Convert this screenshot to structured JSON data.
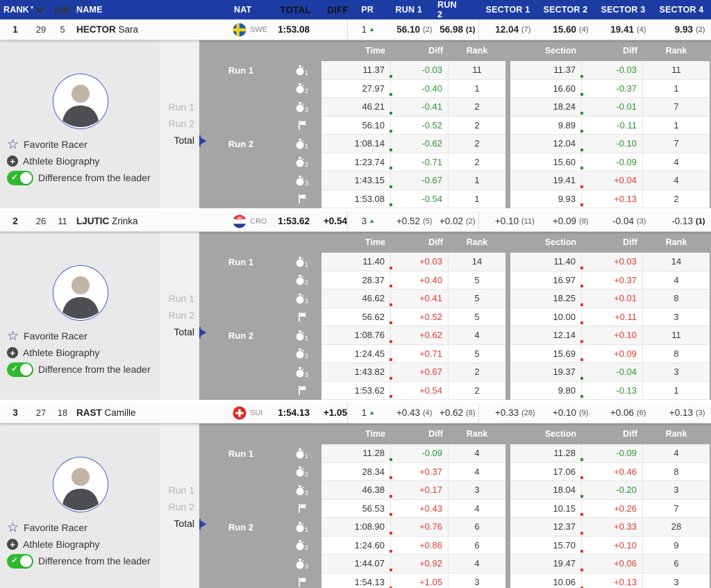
{
  "header": {
    "rank": "RANK",
    "no": "N°",
    "bib": "BIB",
    "name": "NAME",
    "nat": "NAT",
    "total": "TOTAL",
    "diff": "DIFF",
    "pr": "PR",
    "run1": "RUN 1",
    "run2": "RUN 2",
    "sector1": "SECTOR 1",
    "sector2": "SECTOR 2",
    "sector3": "SECTOR 3",
    "sector4": "SECTOR 4"
  },
  "icons": {
    "sort": "▼",
    "pr_up": "▲",
    "star": "☆",
    "plus": "+",
    "check": "✓"
  },
  "detail_header": {
    "time": "Time",
    "diff": "Diff",
    "rank": "Rank",
    "section": "Section"
  },
  "selector": {
    "run1": "Run 1",
    "run2": "Run 2",
    "total": "Total"
  },
  "side": {
    "favorite": "Favorite Racer",
    "biography": "Athlete Biography",
    "difference": "Difference from the leader"
  },
  "colors": {
    "header_bg": "#1C3CA4",
    "panel_gray": "#A5A5A5",
    "faster_green": "#2B9431",
    "slower_red": "#E03A2F",
    "toggle_on_green": "#2FBA2F",
    "accent_blue": "#2843A8"
  },
  "racers": [
    {
      "rank": "1",
      "no": "29",
      "bib": "5",
      "last": "HECTOR",
      "first": "Sara",
      "nat": "SWE",
      "flag": "swe",
      "total": "1:53.08",
      "diff": "",
      "pr": "1",
      "run1": {
        "v": "56.10",
        "r": "(2)"
      },
      "run2": {
        "v": "56.98",
        "r": "(1)"
      },
      "sectors": [
        {
          "v": "12.04",
          "r": "(7)"
        },
        {
          "v": "15.60",
          "r": "(4)"
        },
        {
          "v": "19.41",
          "r": "(4)"
        },
        {
          "v": "9.93",
          "r": "(2)"
        }
      ],
      "rows": [
        {
          "time": "11.37",
          "diff": "-0.03",
          "rank": "11",
          "section": "11.37",
          "sdiff": "-0.03",
          "srank": "11"
        },
        {
          "time": "27.97",
          "diff": "-0.40",
          "rank": "1",
          "section": "16.60",
          "sdiff": "-0.37",
          "srank": "1"
        },
        {
          "time": "46.21",
          "diff": "-0.41",
          "rank": "2",
          "section": "18.24",
          "sdiff": "-0.01",
          "srank": "7"
        },
        {
          "time": "56.10",
          "diff": "-0.52",
          "rank": "2",
          "section": "9.89",
          "sdiff": "-0.11",
          "srank": "1"
        },
        {
          "time": "1:08.14",
          "diff": "-0.62",
          "rank": "2",
          "section": "12.04",
          "sdiff": "-0.10",
          "srank": "7"
        },
        {
          "time": "1:23.74",
          "diff": "-0.71",
          "rank": "2",
          "section": "15.60",
          "sdiff": "-0.09",
          "srank": "4"
        },
        {
          "time": "1:43.15",
          "diff": "-0.67",
          "rank": "1",
          "section": "19.41",
          "sdiff": "+0.04",
          "srank": "4"
        },
        {
          "time": "1:53.08",
          "diff": "-0.54",
          "rank": "1",
          "section": "9.93",
          "sdiff": "+0.13",
          "srank": "2"
        }
      ]
    },
    {
      "rank": "2",
      "no": "26",
      "bib": "11",
      "last": "LJUTIC",
      "first": "Zrinka",
      "nat": "CRO",
      "flag": "cro",
      "total": "1:53.62",
      "diff": "+0.54",
      "pr": "3",
      "run1": {
        "v": "+0.52",
        "r": "(5)"
      },
      "run2": {
        "v": "+0.02",
        "r": "(2)"
      },
      "sectors": [
        {
          "v": "+0.10",
          "r": "(11)"
        },
        {
          "v": "+0.09",
          "r": "(8)"
        },
        {
          "v": "-0.04",
          "r": "(3)"
        },
        {
          "v": "-0.13",
          "r": "(1)"
        }
      ],
      "rows": [
        {
          "time": "11.40",
          "diff": "+0.03",
          "rank": "14",
          "section": "11.40",
          "sdiff": "+0.03",
          "srank": "14"
        },
        {
          "time": "28.37",
          "diff": "+0.40",
          "rank": "5",
          "section": "16.97",
          "sdiff": "+0.37",
          "srank": "4"
        },
        {
          "time": "46.62",
          "diff": "+0.41",
          "rank": "5",
          "section": "18.25",
          "sdiff": "+0.01",
          "srank": "8"
        },
        {
          "time": "56.62",
          "diff": "+0.52",
          "rank": "5",
          "section": "10.00",
          "sdiff": "+0.11",
          "srank": "3"
        },
        {
          "time": "1:08.76",
          "diff": "+0.62",
          "rank": "4",
          "section": "12.14",
          "sdiff": "+0.10",
          "srank": "11"
        },
        {
          "time": "1:24.45",
          "diff": "+0.71",
          "rank": "5",
          "section": "15.69",
          "sdiff": "+0.09",
          "srank": "8"
        },
        {
          "time": "1:43.82",
          "diff": "+0.67",
          "rank": "2",
          "section": "19.37",
          "sdiff": "-0.04",
          "srank": "3"
        },
        {
          "time": "1:53.62",
          "diff": "+0.54",
          "rank": "2",
          "section": "9.80",
          "sdiff": "-0.13",
          "srank": "1"
        }
      ]
    },
    {
      "rank": "3",
      "no": "27",
      "bib": "18",
      "last": "RAST",
      "first": "Camille",
      "nat": "SUI",
      "flag": "sui",
      "total": "1:54.13",
      "diff": "+1.05",
      "pr": "1",
      "run1": {
        "v": "+0.43",
        "r": "(4)"
      },
      "run2": {
        "v": "+0.62",
        "r": "(8)"
      },
      "sectors": [
        {
          "v": "+0.33",
          "r": "(28)"
        },
        {
          "v": "+0.10",
          "r": "(9)"
        },
        {
          "v": "+0.06",
          "r": "(6)"
        },
        {
          "v": "+0.13",
          "r": "(3)"
        }
      ],
      "rows": [
        {
          "time": "11.28",
          "diff": "-0.09",
          "rank": "4",
          "section": "11.28",
          "sdiff": "-0.09",
          "srank": "4"
        },
        {
          "time": "28.34",
          "diff": "+0.37",
          "rank": "4",
          "section": "17.06",
          "sdiff": "+0.46",
          "srank": "8"
        },
        {
          "time": "46.38",
          "diff": "+0.17",
          "rank": "3",
          "section": "18.04",
          "sdiff": "-0.20",
          "srank": "3"
        },
        {
          "time": "56.53",
          "diff": "+0.43",
          "rank": "4",
          "section": "10.15",
          "sdiff": "+0.26",
          "srank": "7"
        },
        {
          "time": "1:08.90",
          "diff": "+0.76",
          "rank": "6",
          "section": "12.37",
          "sdiff": "+0.33",
          "srank": "28"
        },
        {
          "time": "1:24.60",
          "diff": "+0.86",
          "rank": "6",
          "section": "15.70",
          "sdiff": "+0.10",
          "srank": "9"
        },
        {
          "time": "1:44.07",
          "diff": "+0.92",
          "rank": "4",
          "section": "19.47",
          "sdiff": "+0.06",
          "srank": "6"
        },
        {
          "time": "1:54.13",
          "diff": "+1.05",
          "rank": "3",
          "section": "10.06",
          "sdiff": "+0.13",
          "srank": "3"
        }
      ]
    }
  ]
}
